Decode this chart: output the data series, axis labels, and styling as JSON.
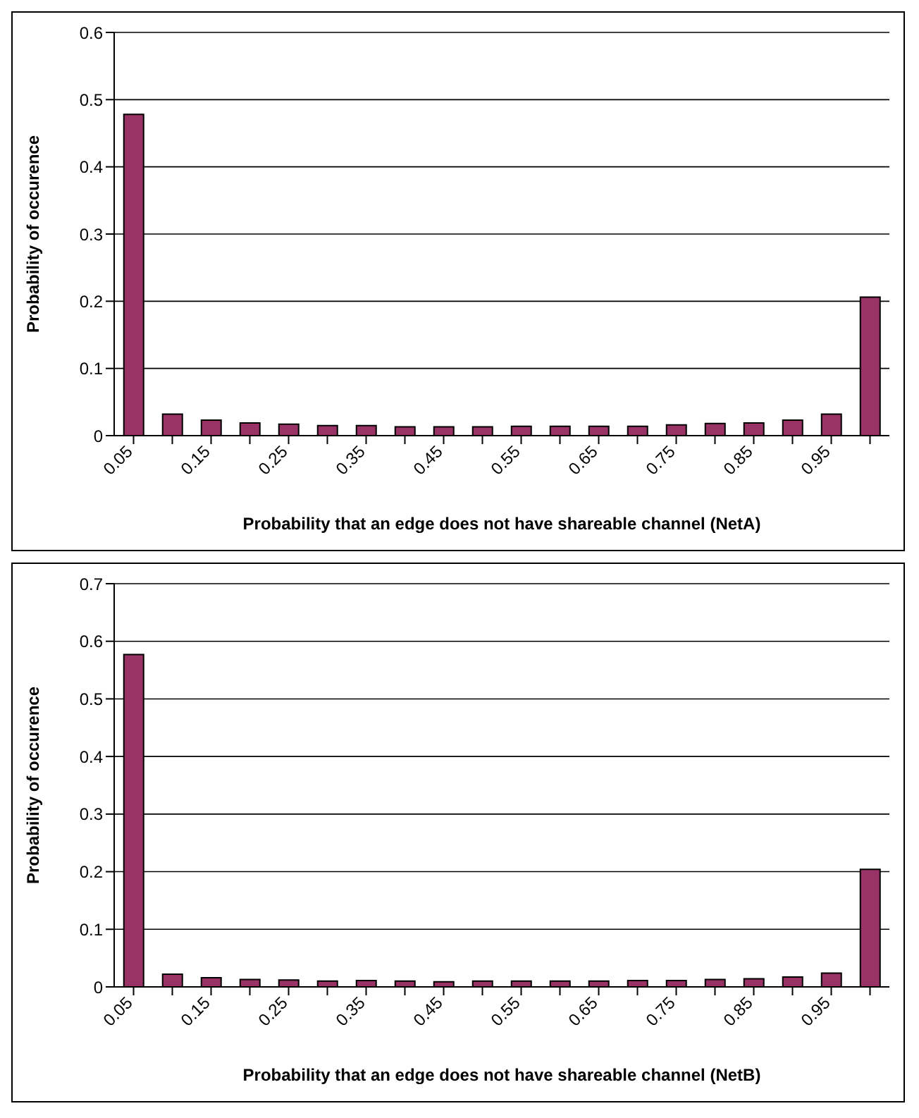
{
  "chart_data": [
    {
      "type": "bar",
      "xlabel": "Probability that an edge does not have shareable channel (NetA)",
      "ylabel": "Probability of occurence",
      "categories": [
        "0.05",
        null,
        "0.15",
        null,
        "0.25",
        null,
        "0.35",
        null,
        "0.45",
        null,
        "0.55",
        null,
        "0.65",
        null,
        "0.75",
        null,
        "0.85",
        null,
        "0.95",
        null
      ],
      "values": [
        0.478,
        0.032,
        0.023,
        0.019,
        0.017,
        0.015,
        0.015,
        0.013,
        0.013,
        0.013,
        0.014,
        0.014,
        0.014,
        0.014,
        0.016,
        0.018,
        0.019,
        0.023,
        0.032,
        0.206
      ],
      "color": "#993366",
      "ylim": [
        0,
        0.6
      ],
      "yticks": [
        0,
        0.1,
        0.2,
        0.3,
        0.4,
        0.5,
        0.6
      ],
      "grid": "y"
    },
    {
      "type": "bar",
      "xlabel": "Probability that an edge does not have shareable channel (NetB)",
      "ylabel": "Probability of occurence",
      "categories": [
        "0.05",
        null,
        "0.15",
        null,
        "0.25",
        null,
        "0.35",
        null,
        "0.45",
        null,
        "0.55",
        null,
        "0.65",
        null,
        "0.75",
        null,
        "0.85",
        null,
        "0.95",
        null
      ],
      "values": [
        0.577,
        0.022,
        0.016,
        0.013,
        0.012,
        0.01,
        0.011,
        0.01,
        0.009,
        0.01,
        0.01,
        0.01,
        0.01,
        0.011,
        0.011,
        0.013,
        0.014,
        0.017,
        0.024,
        0.204
      ],
      "color": "#993366",
      "ylim": [
        0,
        0.7
      ],
      "yticks": [
        0,
        0.1,
        0.2,
        0.3,
        0.4,
        0.5,
        0.6,
        0.7
      ],
      "grid": "y"
    }
  ]
}
